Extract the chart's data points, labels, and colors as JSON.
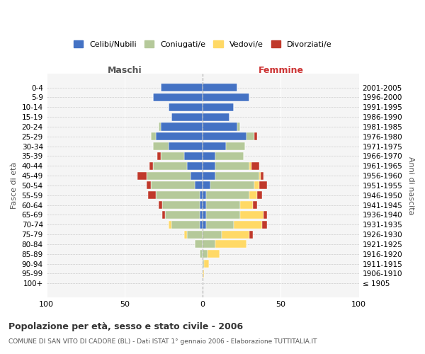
{
  "age_groups": [
    "100+",
    "95-99",
    "90-94",
    "85-89",
    "80-84",
    "75-79",
    "70-74",
    "65-69",
    "60-64",
    "55-59",
    "50-54",
    "45-49",
    "40-44",
    "35-39",
    "30-34",
    "25-29",
    "20-24",
    "15-19",
    "10-14",
    "5-9",
    "0-4"
  ],
  "birth_years": [
    "≤ 1905",
    "1906-1910",
    "1911-1915",
    "1916-1920",
    "1921-1925",
    "1926-1930",
    "1931-1935",
    "1936-1940",
    "1941-1945",
    "1946-1950",
    "1951-1955",
    "1956-1960",
    "1961-1965",
    "1966-1970",
    "1971-1975",
    "1976-1980",
    "1981-1985",
    "1986-1990",
    "1991-1995",
    "1996-2000",
    "2001-2005"
  ],
  "male": {
    "celibi": [
      0,
      0,
      0,
      0,
      0,
      0,
      2,
      2,
      2,
      2,
      5,
      8,
      10,
      12,
      22,
      30,
      27,
      20,
      22,
      32,
      27
    ],
    "coniugati": [
      0,
      0,
      0,
      2,
      5,
      10,
      18,
      22,
      24,
      28,
      28,
      28,
      22,
      15,
      10,
      3,
      1,
      0,
      0,
      0,
      0
    ],
    "vedovi": [
      0,
      0,
      0,
      0,
      0,
      2,
      2,
      0,
      0,
      0,
      0,
      0,
      0,
      0,
      0,
      0,
      0,
      0,
      0,
      0,
      0
    ],
    "divorziati": [
      0,
      0,
      0,
      0,
      0,
      0,
      0,
      2,
      2,
      5,
      3,
      6,
      2,
      2,
      0,
      0,
      0,
      0,
      0,
      0,
      0
    ]
  },
  "female": {
    "nubili": [
      0,
      0,
      0,
      0,
      0,
      0,
      2,
      2,
      2,
      2,
      5,
      8,
      8,
      8,
      15,
      28,
      22,
      17,
      20,
      30,
      22
    ],
    "coniugate": [
      0,
      0,
      1,
      3,
      8,
      12,
      18,
      22,
      22,
      28,
      28,
      28,
      22,
      18,
      12,
      5,
      2,
      0,
      0,
      0,
      0
    ],
    "vedove": [
      0,
      1,
      3,
      8,
      20,
      18,
      18,
      15,
      8,
      5,
      3,
      1,
      1,
      0,
      0,
      0,
      0,
      0,
      0,
      0,
      0
    ],
    "divorziate": [
      0,
      0,
      0,
      0,
      0,
      2,
      3,
      2,
      3,
      3,
      5,
      2,
      5,
      0,
      0,
      2,
      0,
      0,
      0,
      0,
      0
    ]
  },
  "colors": {
    "celibi_nubili": "#4472c4",
    "coniugati": "#b5c99a",
    "vedovi": "#ffd966",
    "divorziati": "#c0392b"
  },
  "xlim": [
    -100,
    100
  ],
  "xticks": [
    -100,
    -50,
    0,
    50,
    100
  ],
  "xticklabels": [
    "100",
    "50",
    "0",
    "50",
    "100"
  ],
  "title": "Popolazione per età, sesso e stato civile - 2006",
  "subtitle": "COMUNE DI SAN VITO DI CADORE (BL) - Dati ISTAT 1° gennaio 2006 - Elaborazione TUTTITALIA.IT",
  "ylabel_left": "Fasce di età",
  "ylabel_right": "Anni di nascita",
  "label_maschi": "Maschi",
  "label_femmine": "Femmine",
  "legend_labels": [
    "Celibi/Nubili",
    "Coniugati/e",
    "Vedovi/e",
    "Divorziati/e"
  ],
  "bg_color": "#ffffff",
  "plot_bg": "#f5f5f5"
}
